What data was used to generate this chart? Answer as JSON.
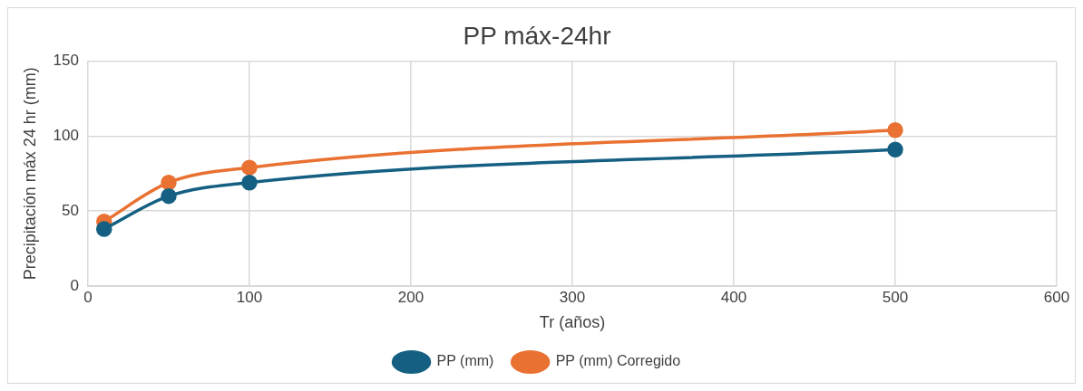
{
  "chart_data": {
    "type": "line",
    "title": "PP máx-24hr",
    "xlabel": "Tr (años)",
    "ylabel": "Precipitación máx 24 hr (mm)",
    "x": [
      10,
      50,
      100,
      500
    ],
    "series": [
      {
        "name": "PP (mm)",
        "color": "#156082",
        "values": [
          38,
          60,
          69,
          91
        ]
      },
      {
        "name": "PP (mm) Corregido",
        "color": "#e97132",
        "values": [
          43,
          69,
          79,
          104
        ]
      }
    ],
    "xlim": [
      0,
      600
    ],
    "xticks": [
      0,
      100,
      200,
      300,
      400,
      500,
      600
    ],
    "ylim": [
      0,
      150
    ],
    "yticks": [
      0,
      50,
      100,
      150
    ],
    "grid": true,
    "legend": "bottom",
    "marker": "circle",
    "line_style": "solid"
  }
}
